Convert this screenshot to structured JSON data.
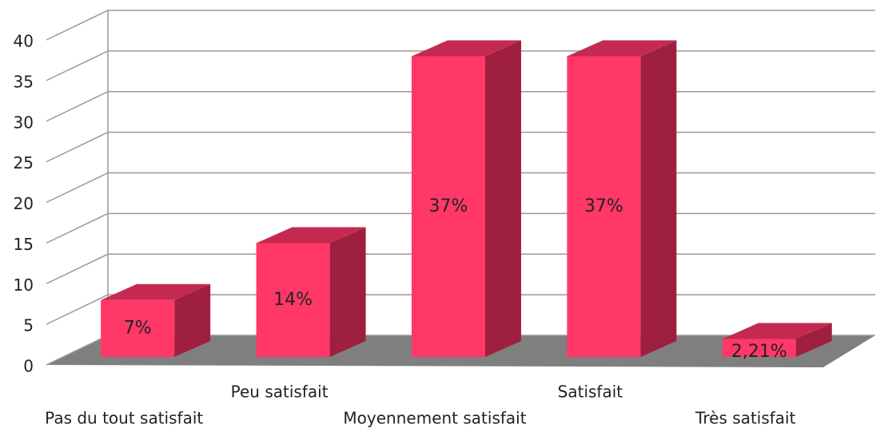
{
  "chart_data": {
    "type": "bar3d",
    "categories": [
      "Pas du tout satisfait",
      "Peu satisfait",
      "Moyennement satisfait",
      "Satisfait",
      "Très satisfait"
    ],
    "values": [
      7,
      14,
      37,
      37,
      2.21
    ],
    "value_labels": [
      "7%",
      "14%",
      "37%",
      "37%",
      "2,21%"
    ],
    "color": "#ff3868",
    "ylim": [
      0,
      40
    ],
    "yticks": [
      0,
      5,
      10,
      15,
      20,
      25,
      30,
      35,
      40
    ],
    "grid": true
  }
}
